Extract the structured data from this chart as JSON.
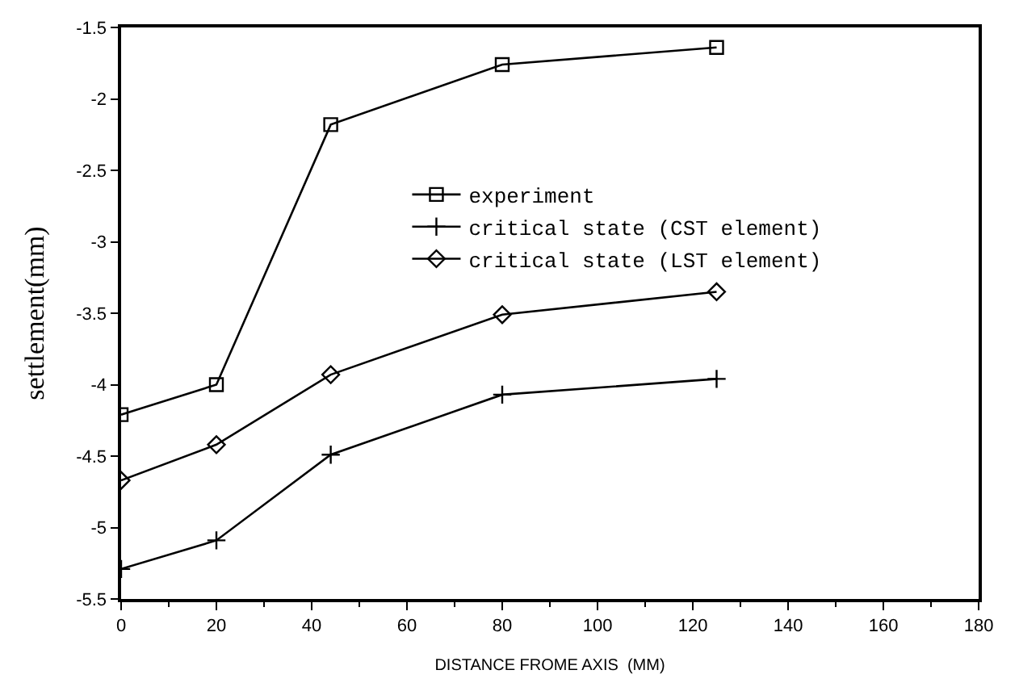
{
  "chart_data": {
    "type": "line",
    "xlabel": "DISTANCE FROME AXIS  (MM)",
    "ylabel": "settlement(mm)",
    "x": [
      0,
      20,
      44,
      80,
      125
    ],
    "series": [
      {
        "name": "experiment",
        "color": "#000000",
        "marker": "square",
        "values": [
          -4.21,
          -4.0,
          -2.18,
          -1.76,
          -1.64
        ]
      },
      {
        "name": "critical state (CST element)",
        "color": "#000000",
        "marker": "cross",
        "values": [
          -5.29,
          -5.09,
          -4.49,
          -4.07,
          -3.96
        ]
      },
      {
        "name": "critical state (LST element)",
        "color": "#000000",
        "marker": "diamond",
        "values": [
          -4.67,
          -4.42,
          -3.93,
          -3.51,
          -3.35
        ]
      }
    ],
    "xlim": [
      0,
      180
    ],
    "xticks": [
      0,
      20,
      40,
      60,
      80,
      100,
      120,
      140,
      160,
      180
    ],
    "ylim": [
      -5.5,
      -1.5
    ],
    "yticks": [
      -5.5,
      -5,
      -4.5,
      -4,
      -3.5,
      -3,
      -2.5,
      -2,
      -1.5
    ],
    "legend": "top",
    "line_style": "solid"
  }
}
